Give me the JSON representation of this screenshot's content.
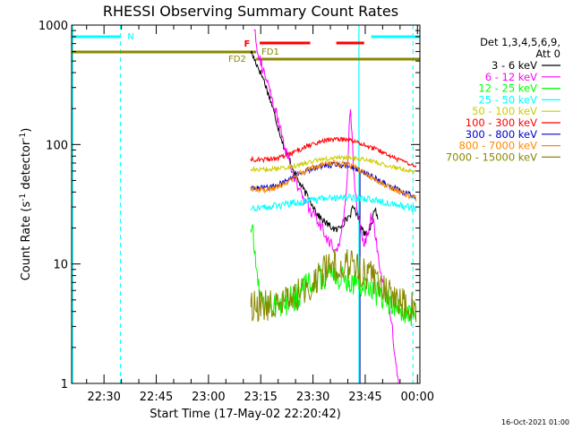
{
  "chart_data": {
    "type": "line",
    "title": "RHESSI Observing Summary Count Rates",
    "xlabel": "Start Time (17-May-02 22:20:42)",
    "ylabel_prefix": "Count Rate (s",
    "ylabel_sup1": "-1",
    "ylabel_mid": " detector",
    "ylabel_sup2": "-1",
    "ylabel_suffix": ")",
    "yscale": "log",
    "ylim": [
      1,
      1000
    ],
    "xlim_minutes": [
      0,
      100
    ],
    "x_unit": "minutes after 22:20:42",
    "x_ticks": [
      {
        "label": "22:30",
        "min": 9.3
      },
      {
        "label": "22:45",
        "min": 24.3
      },
      {
        "label": "23:00",
        "min": 39.3
      },
      {
        "label": "23:15",
        "min": 54.3
      },
      {
        "label": "23:30",
        "min": 69.3
      },
      {
        "label": "23:45",
        "min": 84.3
      },
      {
        "label": "00:00",
        "min": 99.3
      }
    ],
    "y_ticks": [
      {
        "label": "1",
        "value": 1
      },
      {
        "label": "10",
        "value": 10
      },
      {
        "label": "100",
        "value": 100
      },
      {
        "label": "1000",
        "value": 1000
      }
    ],
    "legend_header": [
      "Det 1,3,4,5,6,9,",
      "Att 0"
    ],
    "legend_position": "right",
    "series": [
      {
        "name": "3 - 6 keV",
        "color": "#000000",
        "points": [
          [
            51.5,
            600
          ],
          [
            53,
            480
          ],
          [
            55,
            360
          ],
          [
            57,
            240
          ],
          [
            59,
            150
          ],
          [
            61,
            95
          ],
          [
            63,
            70
          ],
          [
            65,
            50
          ],
          [
            67,
            40
          ],
          [
            69,
            32
          ],
          [
            71,
            25
          ],
          [
            73,
            22
          ],
          [
            75,
            20
          ],
          [
            76,
            19
          ],
          [
            78,
            22
          ],
          [
            80,
            26
          ],
          [
            81,
            30
          ],
          [
            82,
            26
          ],
          [
            84,
            18
          ],
          [
            86,
            20
          ],
          [
            87,
            30
          ],
          [
            88,
            24
          ]
        ]
      },
      {
        "name": "6 - 12 keV",
        "color": "#ff00ff",
        "points": [
          [
            52.5,
            950
          ],
          [
            53.5,
            600
          ],
          [
            55,
            420
          ],
          [
            57,
            270
          ],
          [
            59,
            170
          ],
          [
            61,
            100
          ],
          [
            63,
            65
          ],
          [
            65,
            44
          ],
          [
            67,
            33
          ],
          [
            69,
            27
          ],
          [
            71,
            22
          ],
          [
            73,
            17
          ],
          [
            75,
            14
          ],
          [
            76,
            13
          ],
          [
            77,
            15
          ],
          [
            78,
            22
          ],
          [
            79,
            45
          ],
          [
            80,
            220
          ],
          [
            81,
            60
          ],
          [
            82,
            28
          ],
          [
            83,
            20
          ],
          [
            84,
            15
          ],
          [
            85,
            18
          ],
          [
            86,
            25
          ],
          [
            87,
            20
          ],
          [
            88,
            12
          ],
          [
            89,
            8
          ],
          [
            90,
            6
          ],
          [
            91,
            5
          ],
          [
            92,
            3
          ],
          [
            93,
            1.5
          ],
          [
            94,
            1
          ]
        ]
      },
      {
        "name": "12 - 25 keV",
        "color": "#00ff00",
        "points": [
          [
            51.5,
            20
          ],
          [
            52.5,
            14
          ],
          [
            53,
            10
          ],
          [
            53.5,
            7
          ],
          [
            54,
            5.5
          ],
          [
            55,
            4.8
          ],
          [
            58,
            4.5
          ],
          [
            61,
            4.6
          ],
          [
            63,
            5
          ],
          [
            65,
            5.5
          ],
          [
            67,
            6.5
          ],
          [
            69,
            7
          ],
          [
            71,
            7.5
          ],
          [
            73,
            8
          ],
          [
            75,
            8
          ],
          [
            77,
            7.5
          ],
          [
            79,
            7.5
          ],
          [
            81,
            7.2
          ],
          [
            83,
            7
          ],
          [
            85,
            6.5
          ],
          [
            87,
            6
          ],
          [
            89,
            5.5
          ],
          [
            91,
            5
          ],
          [
            93,
            4.5
          ],
          [
            95,
            4
          ],
          [
            97,
            3.8
          ],
          [
            99,
            3.6
          ]
        ]
      },
      {
        "name": "25 - 50 keV",
        "color": "#00ffff",
        "points": [
          [
            51.5,
            29
          ],
          [
            54,
            30
          ],
          [
            57,
            30
          ],
          [
            60,
            31
          ],
          [
            63,
            32
          ],
          [
            66,
            33
          ],
          [
            69,
            34
          ],
          [
            72,
            35
          ],
          [
            75,
            36
          ],
          [
            78,
            36
          ],
          [
            81,
            36
          ],
          [
            84,
            35
          ],
          [
            87,
            34
          ],
          [
            90,
            33
          ],
          [
            93,
            32
          ],
          [
            96,
            30
          ],
          [
            99,
            29
          ]
        ]
      },
      {
        "name": "50 - 100 keV",
        "color": "#cccc00",
        "points": [
          [
            51.5,
            62
          ],
          [
            54,
            62
          ],
          [
            57,
            62
          ],
          [
            60,
            63
          ],
          [
            63,
            65
          ],
          [
            66,
            68
          ],
          [
            69,
            72
          ],
          [
            72,
            75
          ],
          [
            75,
            77
          ],
          [
            78,
            78
          ],
          [
            81,
            77
          ],
          [
            84,
            75
          ],
          [
            87,
            72
          ],
          [
            90,
            68
          ],
          [
            93,
            64
          ],
          [
            96,
            61
          ],
          [
            99,
            58
          ]
        ]
      },
      {
        "name": "100 - 300 keV",
        "color": "#ff0000",
        "points": [
          [
            51.5,
            75
          ],
          [
            54,
            75
          ],
          [
            57,
            75
          ],
          [
            60,
            78
          ],
          [
            63,
            84
          ],
          [
            66,
            92
          ],
          [
            69,
            100
          ],
          [
            72,
            107
          ],
          [
            75,
            110
          ],
          [
            78,
            110
          ],
          [
            81,
            107
          ],
          [
            84,
            100
          ],
          [
            87,
            92
          ],
          [
            90,
            84
          ],
          [
            93,
            76
          ],
          [
            96,
            70
          ],
          [
            99,
            64
          ]
        ]
      },
      {
        "name": "300 - 800 keV",
        "color": "#0000cc",
        "points": [
          [
            51.5,
            44
          ],
          [
            54,
            44
          ],
          [
            57,
            44
          ],
          [
            60,
            47
          ],
          [
            63,
            52
          ],
          [
            66,
            58
          ],
          [
            69,
            63
          ],
          [
            72,
            66
          ],
          [
            75,
            68
          ],
          [
            78,
            67
          ],
          [
            81,
            64
          ],
          [
            84,
            58
          ],
          [
            87,
            52
          ],
          [
            90,
            47
          ],
          [
            93,
            43
          ],
          [
            96,
            39
          ],
          [
            99,
            36
          ]
        ]
      },
      {
        "name": "800 - 7000 keV",
        "color": "#ff8800",
        "points": [
          [
            51.5,
            42
          ],
          [
            54,
            42
          ],
          [
            57,
            42
          ],
          [
            60,
            45
          ],
          [
            63,
            51
          ],
          [
            66,
            58
          ],
          [
            69,
            64
          ],
          [
            72,
            68
          ],
          [
            75,
            70
          ],
          [
            78,
            69
          ],
          [
            81,
            65
          ],
          [
            84,
            58
          ],
          [
            87,
            51
          ],
          [
            90,
            46
          ],
          [
            93,
            42
          ],
          [
            96,
            38
          ],
          [
            99,
            35
          ]
        ]
      },
      {
        "name": "7000 - 15000 keV",
        "color": "#888800",
        "points": [
          [
            51.5,
            4.5
          ],
          [
            54,
            4.5
          ],
          [
            57,
            4.5
          ],
          [
            60,
            4.6
          ],
          [
            63,
            5.0
          ],
          [
            66,
            5.8
          ],
          [
            69,
            7.0
          ],
          [
            72,
            8.5
          ],
          [
            74,
            9.5
          ],
          [
            76,
            10
          ],
          [
            78,
            10
          ],
          [
            80,
            9.8
          ],
          [
            82,
            9.3
          ],
          [
            84,
            8.6
          ],
          [
            86,
            7.8
          ],
          [
            88,
            7.0
          ],
          [
            90,
            6.3
          ],
          [
            92,
            5.6
          ],
          [
            94,
            5.0
          ],
          [
            96,
            4.6
          ],
          [
            98,
            4.3
          ],
          [
            99,
            4.2
          ]
        ]
      }
    ],
    "annotations": [
      {
        "label": "N",
        "color": "#00cccc"
      },
      {
        "label": "F",
        "color": "#ff0000"
      },
      {
        "label": "FD1",
        "color": "#888800"
      },
      {
        "label": "FD2",
        "color": "#888800"
      }
    ],
    "date_stamp": "16-Oct-2021 01:00"
  }
}
